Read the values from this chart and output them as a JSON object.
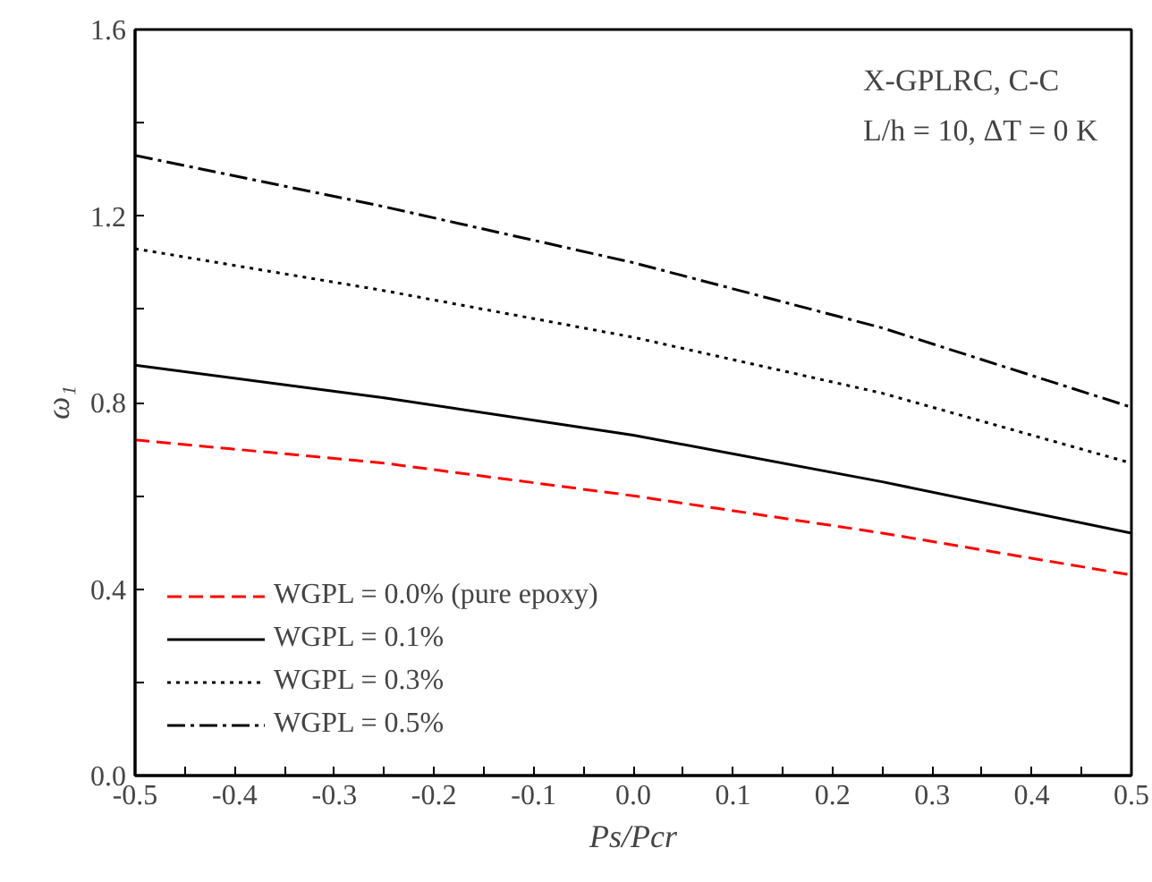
{
  "chart_data": {
    "type": "line",
    "xlabel": "Ps/Pcr",
    "ylabel": "ω₁",
    "annotations": [
      "X-GPLRC, C-C",
      "L/h = 10, ΔT = 0 K"
    ],
    "x": [
      -0.5,
      -0.25,
      0,
      0.25,
      0.5
    ],
    "xlim": [
      -0.5,
      0.5
    ],
    "ylim": [
      0,
      1.6
    ],
    "xticks": [
      {
        "value": -0.5,
        "label": "-0.5"
      },
      {
        "value": -0.45,
        "label": null
      },
      {
        "value": -0.4,
        "label": "-0.4"
      },
      {
        "value": -0.35,
        "label": null
      },
      {
        "value": -0.3,
        "label": "-0.3"
      },
      {
        "value": -0.25,
        "label": null
      },
      {
        "value": -0.2,
        "label": "-0.2"
      },
      {
        "value": -0.15,
        "label": null
      },
      {
        "value": -0.1,
        "label": "-0.1"
      },
      {
        "value": -0.05,
        "label": null
      },
      {
        "value": 0,
        "label": "0.0"
      },
      {
        "value": 0.05,
        "label": null
      },
      {
        "value": 0.1,
        "label": "0.1"
      },
      {
        "value": 0.15,
        "label": null
      },
      {
        "value": 0.2,
        "label": "0.2"
      },
      {
        "value": 0.25,
        "label": null
      },
      {
        "value": 0.3,
        "label": "0.3"
      },
      {
        "value": 0.35,
        "label": null
      },
      {
        "value": 0.4,
        "label": "0.4"
      },
      {
        "value": 0.45,
        "label": null
      },
      {
        "value": 0.5,
        "label": "0.5"
      }
    ],
    "yticks": [
      {
        "value": 0,
        "label": "0.0"
      },
      {
        "value": 0.2,
        "label": null
      },
      {
        "value": 0.4,
        "label": "0.4"
      },
      {
        "value": 0.6,
        "label": null
      },
      {
        "value": 0.8,
        "label": "0.8"
      },
      {
        "value": 1.0,
        "label": null
      },
      {
        "value": 1.2,
        "label": "1.2"
      },
      {
        "value": 1.4,
        "label": null
      },
      {
        "value": 1.6,
        "label": "1.6"
      }
    ],
    "grid": false,
    "legend": "bottom left",
    "series": [
      {
        "name": "WGPL = 0.0% (pure epoxy)",
        "color": "#ff0000",
        "line_style": "dashed",
        "values": [
          0.72,
          0.67,
          0.6,
          0.52,
          0.43
        ]
      },
      {
        "name": "WGPL = 0.1%",
        "color": "#000000",
        "line_style": "solid",
        "values": [
          0.88,
          0.81,
          0.73,
          0.63,
          0.52
        ]
      },
      {
        "name": "WGPL = 0.3%",
        "color": "#000000",
        "line_style": "dotted",
        "values": [
          1.13,
          1.04,
          0.94,
          0.82,
          0.67
        ]
      },
      {
        "name": "WGPL = 0.5%",
        "color": "#000000",
        "line_style": "dashdot",
        "values": [
          1.33,
          1.22,
          1.1,
          0.96,
          0.79
        ]
      }
    ]
  }
}
